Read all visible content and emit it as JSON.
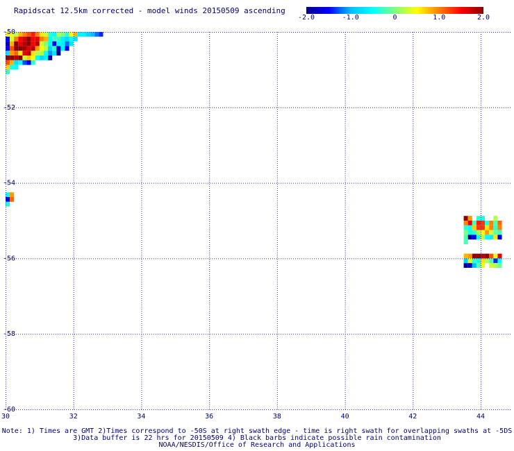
{
  "title": "Rapidscat 12.5km corrected - model winds 20150509 ascending",
  "colorbar": {
    "ticks": [
      "-2.0",
      "-1.0",
      "0",
      "1.0",
      "2.0"
    ],
    "range": [
      -2.0,
      2.0
    ],
    "colors": [
      "#00008b",
      "#0000ff",
      "#00bfff",
      "#00ffff",
      "#7fff7f",
      "#ffff00",
      "#ff8000",
      "#ff0000",
      "#8b0000"
    ]
  },
  "notes": {
    "line1": "Note: 1) Times are GMT 2)Times correspond to -50S at right swath edge - time is right swath for overlapping swaths at -5DS",
    "line2": "3)Data buffer is 22 hrs for 20150509 4) Black barbs indicate possible rain contamination",
    "line3": "NOAA/NESDIS/Office of Research and Applications"
  },
  "chart_data": {
    "type": "heatmap",
    "title": "Rapidscat 12.5km corrected - model winds 20150509 ascending",
    "xlabel": "",
    "ylabel": "",
    "xlim": [
      30,
      44.9
    ],
    "ylim": [
      -60,
      -50
    ],
    "grid": true,
    "x_ticks": [
      {
        "value": 30,
        "label": "30"
      },
      {
        "value": 32,
        "label": "32"
      },
      {
        "value": 34,
        "label": "34"
      },
      {
        "value": 36,
        "label": "36"
      },
      {
        "value": 38,
        "label": "38"
      },
      {
        "value": 40,
        "label": "40"
      },
      {
        "value": 42,
        "label": "42"
      },
      {
        "value": 44,
        "label": "44"
      }
    ],
    "y_ticks": [
      {
        "value": -50,
        "label": "-50"
      },
      {
        "value": -52,
        "label": "-52"
      },
      {
        "value": -54,
        "label": "-54"
      },
      {
        "value": -56,
        "label": "-56"
      },
      {
        "value": -58,
        "label": "-58"
      },
      {
        "value": -60,
        "label": "-60"
      }
    ],
    "cell_size": {
      "lon": 0.125,
      "lat": 0.125
    },
    "regions": [
      {
        "name": "top-left",
        "lon0": 30.0,
        "lat0": -50.0,
        "rows": [
          [
            0.5,
            0.5,
            0.2,
            0.8,
            1.0,
            1.2,
            1.4,
            1.0,
            0.6,
            0.3,
            -0.3,
            -0.5,
            0.2,
            0.0,
            -0.3,
            0.5,
            0.8,
            -0.6,
            -0.6,
            -0.8,
            -1.0,
            -1.2,
            -1.4
          ],
          [
            -1.5,
            0.3,
            1.0,
            1.5,
            1.7,
            2.0,
            1.5,
            1.6,
            1.0,
            0.8,
            -0.5,
            -0.2,
            -0.3,
            -0.6,
            -0.8,
            -0.5,
            -0.7
          ],
          [
            -1.8,
            0.8,
            2.0,
            1.6,
            1.8,
            2.0,
            1.5,
            1.8,
            0.3,
            0.0,
            -0.5,
            -1.5,
            -0.5,
            -0.6,
            -1.2,
            -0.7
          ],
          [
            -1.5,
            1.2,
            2.0,
            2.0,
            1.9,
            1.6,
            1.8,
            0.9,
            0.5,
            0.2,
            -0.8,
            -0.3,
            -1.8,
            -0.6,
            -1.6
          ],
          [
            -0.7,
            0.9,
            1.1,
            0.6,
            1.6,
            1.8,
            0.6,
            0.2,
            0.2,
            -0.5,
            -1.1,
            -0.7,
            -2.0
          ],
          [
            2.0,
            2.0,
            1.8,
            2.0,
            0.3,
            0.7,
            0.5,
            -0.5,
            -0.8,
            -0.6,
            -1.9
          ],
          [
            1.2,
            0.8,
            -0.7,
            -0.5,
            -1.3,
            -1.6,
            -0.3
          ],
          [
            0.7,
            -0.4,
            -0.5
          ],
          [
            -0.3
          ]
        ]
      },
      {
        "name": "left-edge-mid",
        "lon0": 30.0,
        "lat0": -54.25,
        "rows": [
          [
            -0.5,
            0.9
          ],
          [
            -1.6,
            1.1
          ],
          [
            -0.4
          ]
        ]
      },
      {
        "name": "right-block-upper",
        "lon0": 43.5,
        "lat0": -54.875,
        "rows": [
          [
            2.0,
            0.9,
            null,
            -0.3,
            -0.4,
            null,
            null,
            0.2,
            null
          ],
          [
            1.0,
            1.6,
            -0.2,
            1.4,
            1.3,
            -0.4,
            1.0,
            -0.2,
            1.1
          ],
          [
            -0.3,
            -0.5,
            0.7,
            1.3,
            1.3,
            0.6,
            1.0,
            -0.3,
            1.0
          ],
          [
            0.0,
            -0.4,
            -0.3,
            0.2,
            0.5,
            0.9,
            0.3,
            -0.1,
            -0.2
          ],
          [
            -0.2,
            -2.0,
            -1.5,
            -0.4,
            0.3,
            -0.5,
            -0.6,
            0.6,
            -1.6
          ],
          [
            -0.2
          ]
        ]
      },
      {
        "name": "right-block-lower",
        "lon0": 43.5,
        "lat0": -55.875,
        "rows": [
          [
            0.8,
            0.9,
            2.0,
            2.0,
            1.8,
            2.0,
            1.2,
            0.4,
            1.6
          ],
          [
            -0.8,
            0.4,
            -0.3,
            -0.4,
            0.6,
            0.2,
            -0.2,
            -1.4,
            -0.5
          ],
          [
            -1.9,
            -1.8,
            -1.0,
            -0.2,
            0.4,
            null,
            0.3,
            0.2,
            -0.1
          ]
        ]
      }
    ]
  }
}
